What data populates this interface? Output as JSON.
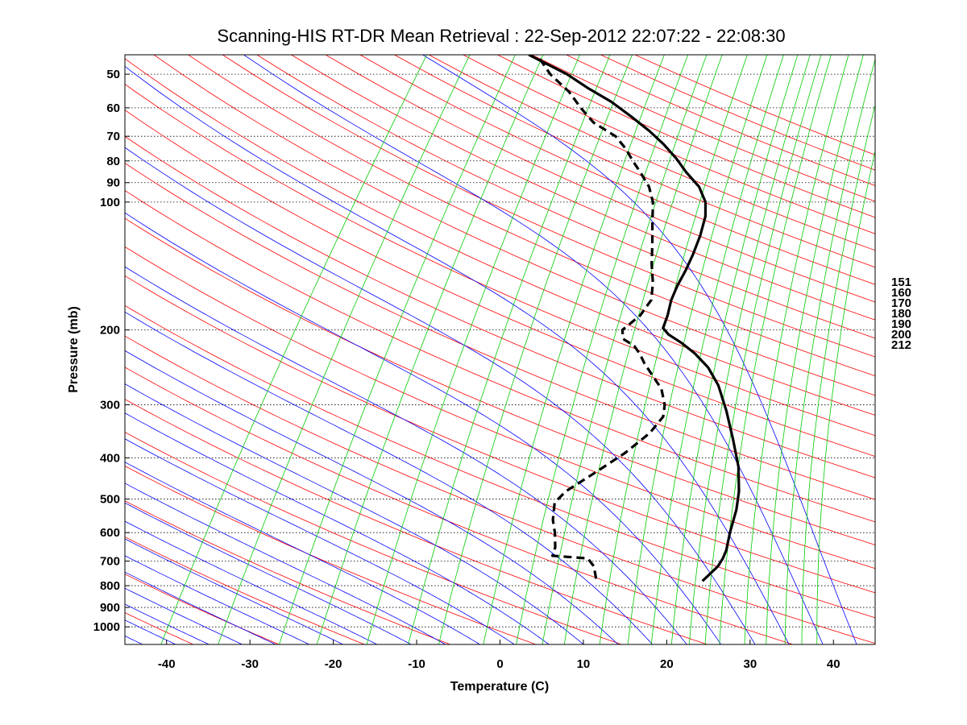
{
  "chart_data": {
    "type": "line",
    "title": "Scanning-HIS RT-DR Mean Retrieval : 22-Sep-2012 22:07:22 - 22:08:30",
    "xlabel": "Temperature (C)",
    "ylabel": "Pressure (mb)",
    "xlim": [
      -45,
      45
    ],
    "ylim": [
      1100,
      45
    ],
    "y_scale": "log",
    "x_ticks": [
      -40,
      -30,
      -20,
      -10,
      0,
      10,
      20,
      30,
      40
    ],
    "y_ticks": [
      50,
      60,
      70,
      80,
      90,
      100,
      200,
      300,
      400,
      500,
      600,
      700,
      800,
      900,
      1000
    ],
    "grid": "horizontal dotted at pressure ticks",
    "skew_ratio": 0.826,
    "right_labels": [
      "151",
      "160",
      "170",
      "180",
      "190",
      "200",
      "212"
    ],
    "colors": {
      "temperature": "#000000",
      "dewpoint": "#000000",
      "dry_adiabat": "#ff0000",
      "moist_adiabat": "#0000ff",
      "mixing_ratio": "#00cc00",
      "grid": "#000000"
    },
    "series": [
      {
        "style": "solid",
        "points": [
          [
            18.0,
            780
          ],
          [
            18.4,
            720
          ],
          [
            18.2,
            690
          ],
          [
            17.8,
            660
          ],
          [
            16.5,
            600
          ],
          [
            15.0,
            530
          ],
          [
            13.5,
            480
          ],
          [
            11.0,
            420
          ],
          [
            7.5,
            360
          ],
          [
            4.0,
            310
          ],
          [
            0.5,
            270
          ],
          [
            -2.5,
            245
          ],
          [
            -5.5,
            227
          ],
          [
            -8.0,
            215
          ],
          [
            -10.5,
            205
          ],
          [
            -11.8,
            198
          ],
          [
            -12.5,
            185
          ],
          [
            -13.6,
            170
          ],
          [
            -14.3,
            157
          ],
          [
            -14.8,
            145
          ],
          [
            -15.5,
            133
          ],
          [
            -16.5,
            120
          ],
          [
            -17.8,
            108
          ],
          [
            -19.2,
            100
          ],
          [
            -21.5,
            92
          ],
          [
            -24.5,
            85
          ],
          [
            -27.0,
            79
          ],
          [
            -30.0,
            73
          ],
          [
            -33.0,
            68
          ],
          [
            -36.5,
            63
          ],
          [
            -40.5,
            58
          ],
          [
            -44.5,
            54
          ],
          [
            -48.5,
            50
          ],
          [
            -55.0,
            45
          ]
        ]
      },
      {
        "style": "dashed",
        "points": [
          [
            5.0,
            770
          ],
          [
            3.5,
            720
          ],
          [
            2.0,
            690
          ],
          [
            -2.5,
            680
          ],
          [
            -3.0,
            650
          ],
          [
            -4.5,
            600
          ],
          [
            -6.0,
            560
          ],
          [
            -7.5,
            510
          ],
          [
            -7.3,
            480
          ],
          [
            -5.5,
            430
          ],
          [
            -4.0,
            390
          ],
          [
            -3.0,
            350
          ],
          [
            -3.0,
            320
          ],
          [
            -4.0,
            300
          ],
          [
            -6.0,
            275
          ],
          [
            -8.5,
            255
          ],
          [
            -10.5,
            240
          ],
          [
            -12.0,
            228
          ],
          [
            -13.5,
            218
          ],
          [
            -15.5,
            210
          ],
          [
            -16.5,
            200
          ],
          [
            -15.8,
            185
          ],
          [
            -16.0,
            170
          ],
          [
            -17.5,
            155
          ],
          [
            -19.5,
            140
          ],
          [
            -21.5,
            125
          ],
          [
            -23.5,
            112
          ],
          [
            -25.5,
            100
          ],
          [
            -27.5,
            92
          ],
          [
            -30.0,
            85
          ],
          [
            -32.0,
            80
          ],
          [
            -34.0,
            75
          ],
          [
            -36.5,
            70
          ],
          [
            -40.5,
            65
          ],
          [
            -43.5,
            60
          ],
          [
            -46.5,
            55
          ],
          [
            -50.5,
            50
          ],
          [
            -54.0,
            45
          ]
        ]
      }
    ]
  }
}
